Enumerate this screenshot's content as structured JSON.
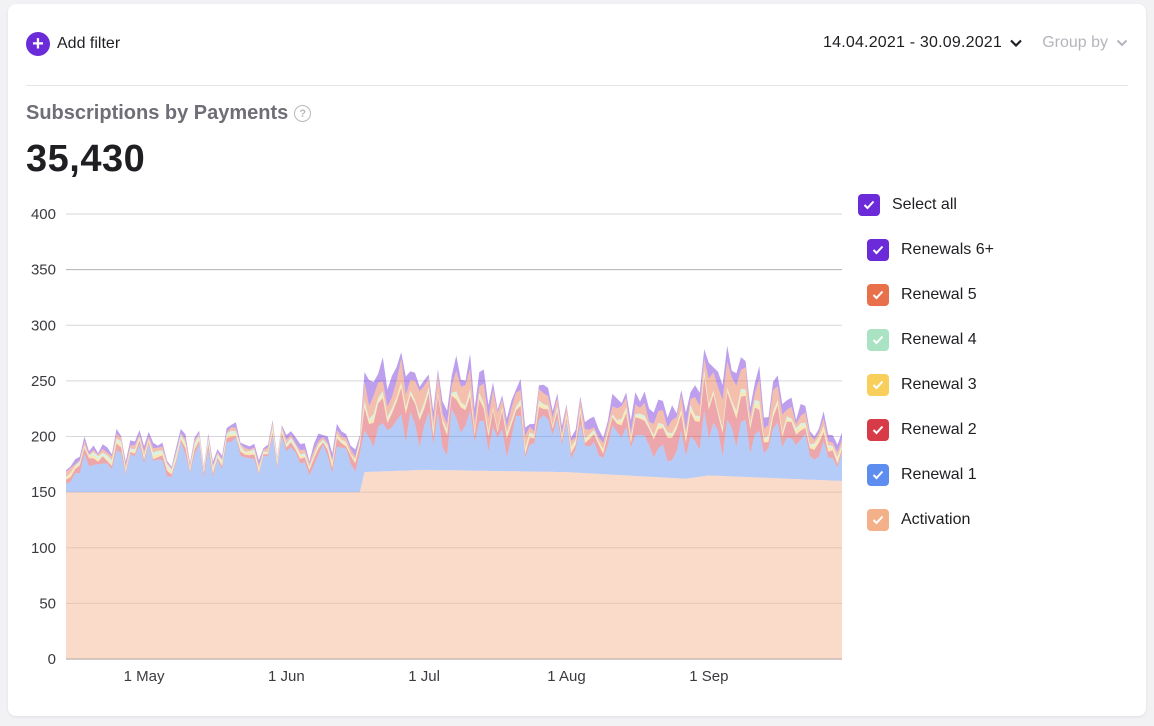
{
  "toolbar": {
    "add_filter_label": "Add filter",
    "date_range": "14.04.2021 - 30.09.2021",
    "group_by_label": "Group by"
  },
  "header": {
    "title": "Subscriptions by Payments",
    "total": "35,430"
  },
  "legend": {
    "select_all": "Select all",
    "items": [
      {
        "label": "Renewals 6+",
        "color": "#6c2bd9"
      },
      {
        "label": "Renewal 5",
        "color": "#e8704a"
      },
      {
        "label": "Renewal 4",
        "color": "#a9e3c4"
      },
      {
        "label": "Renewal 3",
        "color": "#f7cf5a"
      },
      {
        "label": "Renewal 2",
        "color": "#d83b48"
      },
      {
        "label": "Renewal 1",
        "color": "#5e8df0"
      },
      {
        "label": "Activation",
        "color": "#f3b089"
      }
    ]
  },
  "chart_data": {
    "type": "area",
    "stacked": true,
    "x_start": "2021-04-14",
    "x_end": "2021-09-30",
    "ylim": [
      0,
      400
    ],
    "yticks": [
      "0",
      "50",
      "100",
      "150",
      "200",
      "250",
      "300",
      "350",
      "400"
    ],
    "xticks": [
      {
        "date": "2021-05-01",
        "label": "1 May"
      },
      {
        "date": "2021-06-01",
        "label": "1 Jun"
      },
      {
        "date": "2021-07-01",
        "label": "1 Jul"
      },
      {
        "date": "2021-08-01",
        "label": "1 Aug"
      },
      {
        "date": "2021-09-01",
        "label": "1 Sep"
      }
    ],
    "grid": true,
    "legend_position": "right",
    "series": [
      {
        "name": "Activation",
        "color": "#f3b089",
        "values": [
          {
            "x": "2021-04-14",
            "y": 150
          },
          {
            "x": "2021-05-20",
            "y": 150
          },
          {
            "x": "2021-06-17",
            "y": 150
          },
          {
            "x": "2021-06-18",
            "y": 168
          },
          {
            "x": "2021-07-01",
            "y": 170
          },
          {
            "x": "2021-08-01",
            "y": 168
          },
          {
            "x": "2021-08-27",
            "y": 162
          },
          {
            "x": "2021-09-01",
            "y": 165
          },
          {
            "x": "2021-09-30",
            "y": 160
          }
        ]
      },
      {
        "name": "Renewal 1",
        "color": "#5e8df0",
        "values": [
          {
            "x": "2021-04-14",
            "y": 20
          },
          {
            "x": "2021-05-20",
            "y": 35
          },
          {
            "x": "2021-06-17",
            "y": 25
          },
          {
            "x": "2021-06-18",
            "y": 30
          },
          {
            "x": "2021-07-01",
            "y": 35
          },
          {
            "x": "2021-08-01",
            "y": 30
          },
          {
            "x": "2021-08-27",
            "y": 35
          },
          {
            "x": "2021-09-01",
            "y": 45
          },
          {
            "x": "2021-09-30",
            "y": 20
          }
        ]
      },
      {
        "name": "Renewal 2",
        "color": "#d83b48",
        "values": [
          {
            "x": "2021-04-14",
            "y": 5
          },
          {
            "x": "2021-05-20",
            "y": 3
          },
          {
            "x": "2021-06-17",
            "y": 5
          },
          {
            "x": "2021-06-18",
            "y": 15
          },
          {
            "x": "2021-07-01",
            "y": 18
          },
          {
            "x": "2021-08-01",
            "y": 5
          },
          {
            "x": "2021-08-27",
            "y": 15
          },
          {
            "x": "2021-09-01",
            "y": 20
          },
          {
            "x": "2021-09-30",
            "y": 5
          }
        ]
      },
      {
        "name": "Renewal 3",
        "color": "#f7cf5a",
        "values": [
          {
            "x": "2021-04-14",
            "y": 2
          },
          {
            "x": "2021-05-20",
            "y": 2
          },
          {
            "x": "2021-06-17",
            "y": 2
          },
          {
            "x": "2021-06-18",
            "y": 3
          },
          {
            "x": "2021-07-01",
            "y": 3
          },
          {
            "x": "2021-08-01",
            "y": 2
          },
          {
            "x": "2021-08-27",
            "y": 3
          },
          {
            "x": "2021-09-01",
            "y": 3
          },
          {
            "x": "2021-09-30",
            "y": 3
          }
        ]
      },
      {
        "name": "Renewal 4",
        "color": "#a9e3c4",
        "values": [
          {
            "x": "2021-04-14",
            "y": 2
          },
          {
            "x": "2021-05-20",
            "y": 2
          },
          {
            "x": "2021-06-17",
            "y": 2
          },
          {
            "x": "2021-06-18",
            "y": 2
          },
          {
            "x": "2021-07-01",
            "y": 2
          },
          {
            "x": "2021-08-01",
            "y": 2
          },
          {
            "x": "2021-08-27",
            "y": 2
          },
          {
            "x": "2021-09-01",
            "y": 2
          },
          {
            "x": "2021-09-30",
            "y": 2
          }
        ]
      },
      {
        "name": "Renewal 5",
        "color": "#e8704a",
        "values": [
          {
            "x": "2021-04-14",
            "y": 3
          },
          {
            "x": "2021-05-20",
            "y": 2
          },
          {
            "x": "2021-06-17",
            "y": 3
          },
          {
            "x": "2021-06-18",
            "y": 12
          },
          {
            "x": "2021-07-01",
            "y": 15
          },
          {
            "x": "2021-08-01",
            "y": 5
          },
          {
            "x": "2021-08-27",
            "y": 10
          },
          {
            "x": "2021-09-01",
            "y": 20
          },
          {
            "x": "2021-09-30",
            "y": 3
          }
        ]
      },
      {
        "name": "Renewals 6+",
        "color": "#6c2bd9",
        "values": [
          {
            "x": "2021-04-14",
            "y": 3
          },
          {
            "x": "2021-05-20",
            "y": 3
          },
          {
            "x": "2021-06-17",
            "y": 5
          },
          {
            "x": "2021-06-18",
            "y": 15
          },
          {
            "x": "2021-07-01",
            "y": 10
          },
          {
            "x": "2021-08-01",
            "y": 5
          },
          {
            "x": "2021-08-27",
            "y": 10
          },
          {
            "x": "2021-09-01",
            "y": 10
          },
          {
            "x": "2021-09-30",
            "y": 5
          }
        ]
      }
    ]
  }
}
